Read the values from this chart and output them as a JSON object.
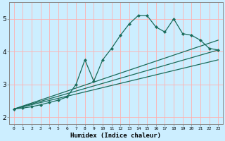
{
  "xlabel": "Humidex (Indice chaleur)",
  "background_color": "#cceeff",
  "grid_color": "#ffb0b0",
  "line_color": "#1a6b5a",
  "xlim": [
    -0.5,
    23.5
  ],
  "ylim": [
    1.8,
    5.5
  ],
  "xticks": [
    0,
    1,
    2,
    3,
    4,
    5,
    6,
    7,
    8,
    9,
    10,
    11,
    12,
    13,
    14,
    15,
    16,
    17,
    18,
    19,
    20,
    21,
    22,
    23
  ],
  "yticks": [
    2,
    3,
    4,
    5
  ],
  "main_x": [
    0,
    1,
    2,
    3,
    4,
    5,
    6,
    7,
    8,
    9,
    10,
    11,
    12,
    13,
    14,
    15,
    16,
    17,
    18,
    19,
    20,
    21,
    22,
    23
  ],
  "main_y": [
    2.25,
    2.28,
    2.32,
    2.38,
    2.45,
    2.52,
    2.62,
    3.0,
    3.75,
    3.1,
    3.75,
    4.1,
    4.5,
    4.85,
    5.1,
    5.1,
    4.75,
    4.6,
    5.0,
    4.55,
    4.5,
    4.35,
    4.1,
    4.05
  ],
  "straight_lines": [
    {
      "x0": 0,
      "y0": 2.25,
      "x1": 23,
      "y1": 4.05
    },
    {
      "x0": 0,
      "y0": 2.25,
      "x1": 23,
      "y1": 4.35
    },
    {
      "x0": 0,
      "y0": 2.25,
      "x1": 23,
      "y1": 3.75
    }
  ]
}
